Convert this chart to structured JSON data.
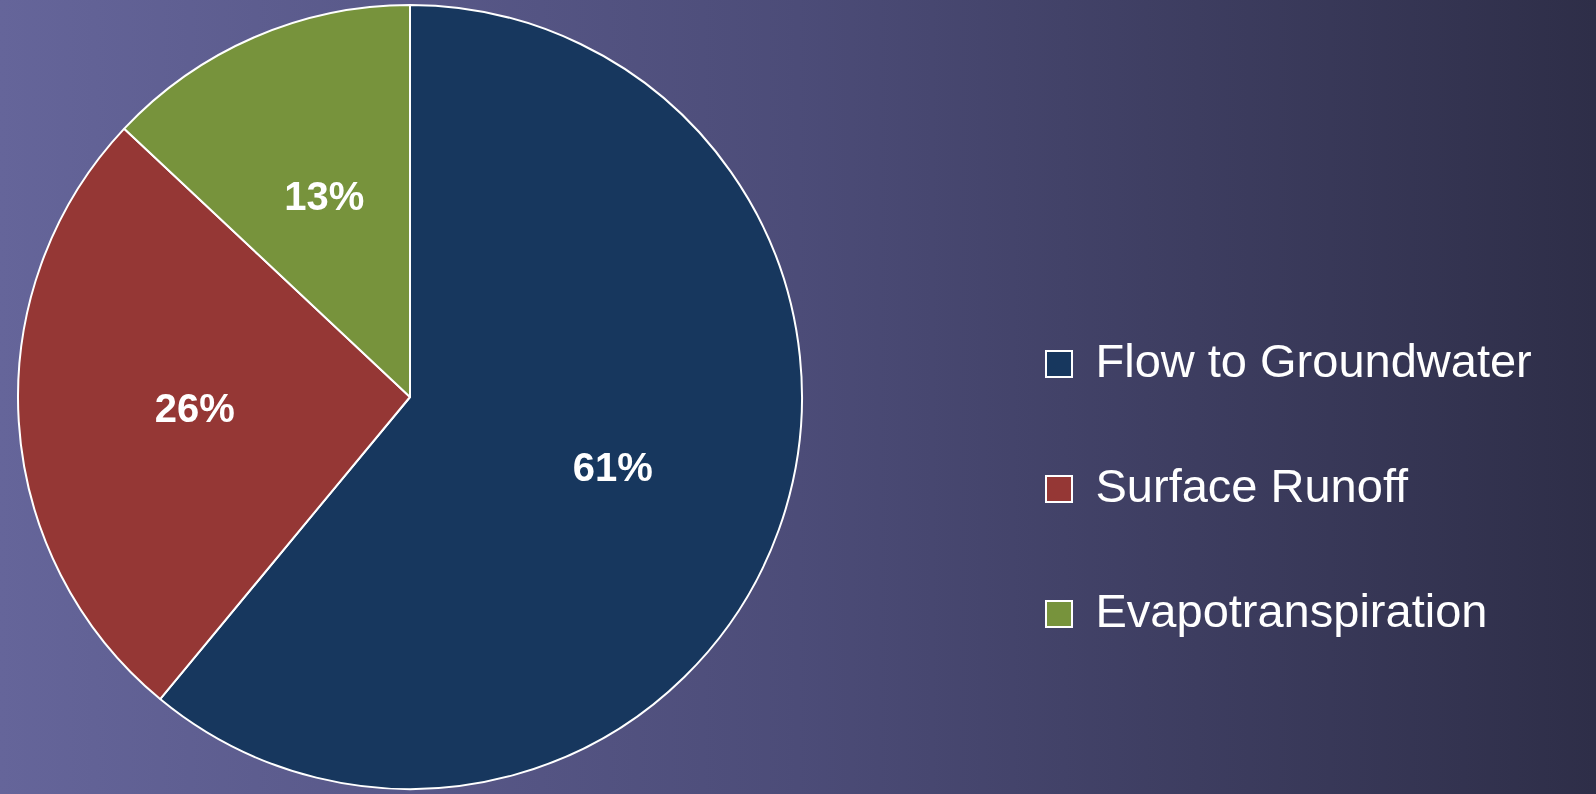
{
  "chart_data": {
    "type": "pie",
    "categories": [
      "Flow to Groundwater",
      "Surface Runoff",
      "Evapotranspiration"
    ],
    "values": [
      61,
      26,
      13
    ],
    "colors": [
      "#17375e",
      "#953735",
      "#77933c"
    ],
    "value_labels": [
      "61%",
      "26%",
      "13%"
    ],
    "legend": "right"
  }
}
